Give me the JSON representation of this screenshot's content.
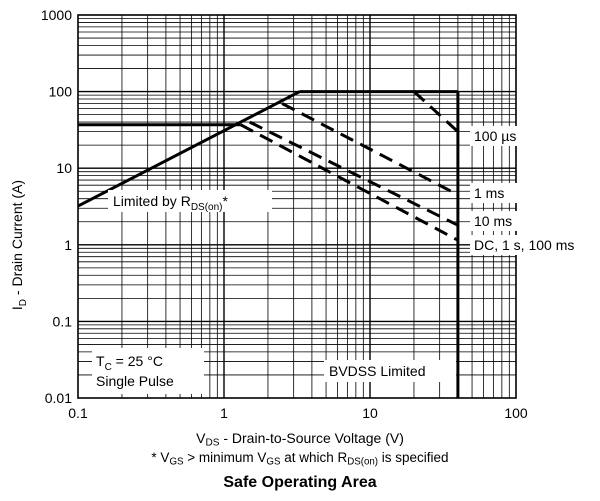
{
  "chart_data": {
    "type": "line",
    "title": "Safe Operating Area",
    "xlabel": {
      "main": "V",
      "sub": "DS",
      "rest": " - Drain-to-Source Voltage (V)"
    },
    "ylabel": {
      "main": "I",
      "sub": "D",
      "rest": " - Drain Current (A)"
    },
    "footnote": {
      "p1": "* V",
      "s1": "GS",
      "p2": " > minimum V",
      "s2": "GS",
      "p3": " at which R",
      "s3": "DS(on)",
      "p4": " is specified"
    },
    "x_scale": "log",
    "y_scale": "log",
    "xlim": [
      0.1,
      100
    ],
    "ylim": [
      0.01,
      1000
    ],
    "x_ticks": [
      {
        "v": 0.1,
        "label": "0.1"
      },
      {
        "v": 1,
        "label": "1"
      },
      {
        "v": 10,
        "label": "10"
      },
      {
        "v": 100,
        "label": "100"
      }
    ],
    "y_ticks": [
      {
        "v": 0.01,
        "label": "0.01"
      },
      {
        "v": 0.1,
        "label": "0.1"
      },
      {
        "v": 1,
        "label": "1"
      },
      {
        "v": 10,
        "label": "10"
      },
      {
        "v": 100,
        "label": "100"
      },
      {
        "v": 1000,
        "label": "1000"
      }
    ],
    "grid": true,
    "series": [
      {
        "style": "solid",
        "points": [
          [
            0.1,
            3.2
          ],
          [
            3.3,
            100
          ]
        ]
      },
      {
        "style": "solid",
        "points": [
          [
            0.1,
            37
          ],
          [
            1.3,
            37
          ]
        ]
      },
      {
        "style": "solid",
        "points": [
          [
            3.3,
            100
          ],
          [
            40,
            100
          ]
        ]
      },
      {
        "style": "solid",
        "points": [
          [
            40,
            0.01
          ],
          [
            40,
            100
          ]
        ]
      },
      {
        "name": "100 µs",
        "style": "dashed",
        "points": [
          [
            20,
            100
          ],
          [
            40,
            30
          ]
        ]
      },
      {
        "name": "1 ms",
        "style": "dashed",
        "points": [
          [
            2.5,
            70
          ],
          [
            40,
            4.5
          ]
        ]
      },
      {
        "name": "10 ms",
        "style": "dashed",
        "points": [
          [
            1.5,
            40
          ],
          [
            40,
            1.8
          ]
        ]
      },
      {
        "name": "DC, 1 s, 100 ms",
        "style": "dashed",
        "points": [
          [
            1.3,
            37
          ],
          [
            40,
            1.15
          ]
        ]
      }
    ],
    "annotations": {
      "limited_by": {
        "p1": "Limited by R",
        "s1": "DS(on)",
        "p2": "*"
      },
      "tc": {
        "p1": "T",
        "s1": "C",
        "p2": " = 25 °C"
      },
      "pulse": "Single Pulse",
      "bvdss": "BVDSS Limited",
      "curve_100us": "100 µs",
      "curve_1ms": "1 ms",
      "curve_10ms": "10 ms",
      "curve_dc": "DC, 1 s, 100 ms"
    }
  }
}
